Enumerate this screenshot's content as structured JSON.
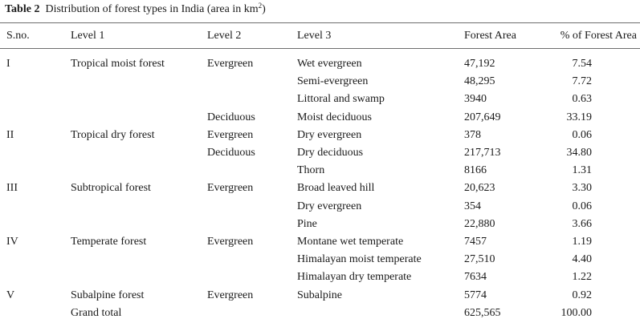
{
  "caption": {
    "label": "Table 2",
    "text_before_sup": "Distribution of forest types in India (area in km",
    "sup": "2",
    "text_after_sup": ")"
  },
  "table": {
    "headers": [
      "S.no.",
      "Level 1",
      "Level 2",
      "Level 3",
      "Forest Area",
      "% of Forest Area"
    ],
    "rows": [
      [
        "I",
        "Tropical moist forest",
        "Evergreen",
        "Wet evergreen",
        "47,192",
        "7.54"
      ],
      [
        "",
        "",
        "",
        "Semi-evergreen",
        "48,295",
        "7.72"
      ],
      [
        "",
        "",
        "",
        "Littoral and swamp",
        "3940",
        "0.63"
      ],
      [
        "",
        "",
        "Deciduous",
        "Moist deciduous",
        "207,649",
        "33.19"
      ],
      [
        "II",
        "Tropical dry forest",
        "Evergreen",
        "Dry evergreen",
        "378",
        "0.06"
      ],
      [
        "",
        "",
        "Deciduous",
        "Dry deciduous",
        "217,713",
        "34.80"
      ],
      [
        "",
        "",
        "",
        "Thorn",
        "8166",
        "1.31"
      ],
      [
        "III",
        "Subtropical forest",
        "Evergreen",
        "Broad leaved hill",
        "20,623",
        "3.30"
      ],
      [
        "",
        "",
        "",
        "Dry evergreen",
        "354",
        "0.06"
      ],
      [
        "",
        "",
        "",
        "Pine",
        "22,880",
        "3.66"
      ],
      [
        "IV",
        "Temperate forest",
        "Evergreen",
        "Montane wet temperate",
        "7457",
        "1.19"
      ],
      [
        "",
        "",
        "",
        "Himalayan moist temperate",
        "27,510",
        "4.40"
      ],
      [
        "",
        "",
        "",
        "Himalayan dry temperate",
        "7634",
        "1.22"
      ],
      [
        "V",
        "Subalpine forest",
        "Evergreen",
        "Subalpine",
        "5774",
        "0.92"
      ],
      [
        "",
        "Grand total",
        "",
        "",
        "625,565",
        "100.00"
      ]
    ]
  }
}
